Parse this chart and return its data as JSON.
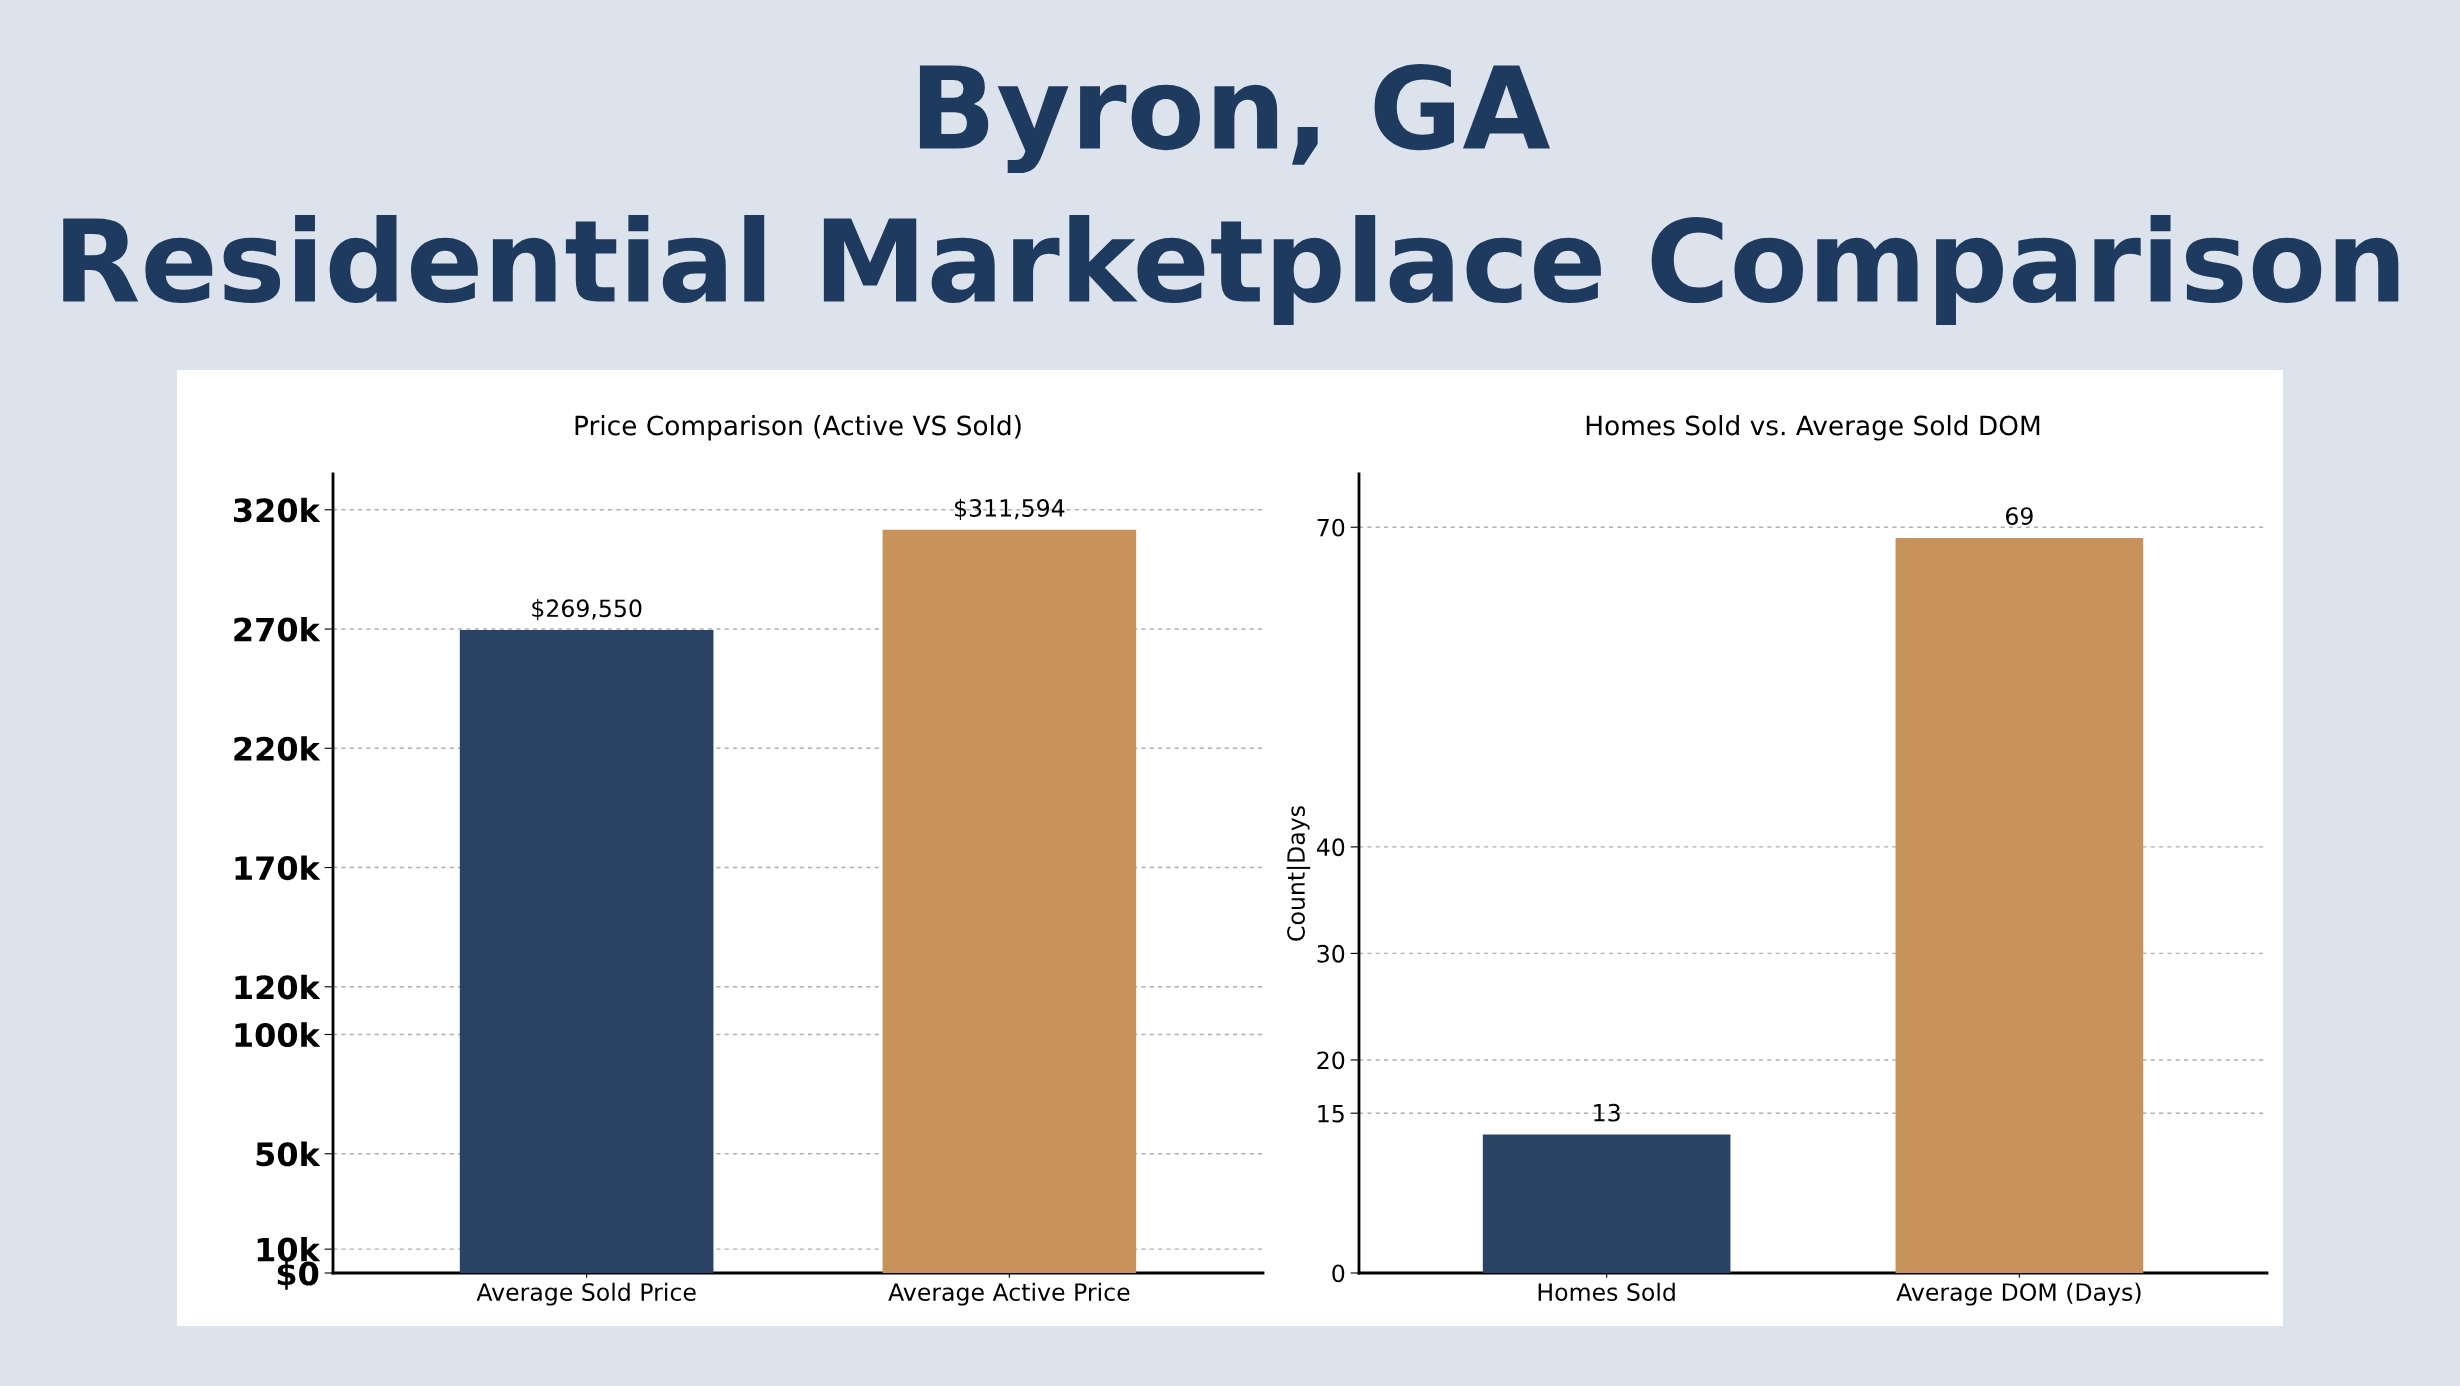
{
  "chart_data": [
    {
      "type": "bar",
      "title": "Price Comparison (Active VS Sold)",
      "annotations": [
        "Byron, GA",
        "Residential Marketplace Comparison"
      ],
      "categories": [
        "Average Sold Price",
        "Average Active Price"
      ],
      "values": [
        269550,
        311594
      ],
      "colors": [
        "#2a4263",
        "#c8935a"
      ],
      "value_labels": [
        "$269,550",
        "$311,594"
      ],
      "ylim": [
        0,
        335000
      ],
      "yticks": [
        {
          "value": 0,
          "label": "$0"
        },
        {
          "value": 10000,
          "label": "10k"
        },
        {
          "value": 50000,
          "label": "50k"
        },
        {
          "value": 100000,
          "label": "100k"
        },
        {
          "value": 120000,
          "label": "120k"
        },
        {
          "value": 170000,
          "label": "170k"
        },
        {
          "value": 220000,
          "label": "220k"
        },
        {
          "value": 270000,
          "label": "270k"
        },
        {
          "value": 320000,
          "label": "320k"
        }
      ],
      "grid": "y"
    },
    {
      "type": "bar",
      "title": "Homes Sold vs. Average Sold DOM",
      "ylabel": "Count|Days",
      "categories": [
        "Homes Sold",
        "Average DOM (Days)"
      ],
      "values": [
        13,
        69
      ],
      "colors": [
        "#2a4263",
        "#c8935a"
      ],
      "data_labels": true,
      "ylim": [
        0,
        75
      ],
      "yticks": [
        0,
        15,
        20,
        30,
        40,
        70
      ],
      "grid": "y"
    }
  ]
}
